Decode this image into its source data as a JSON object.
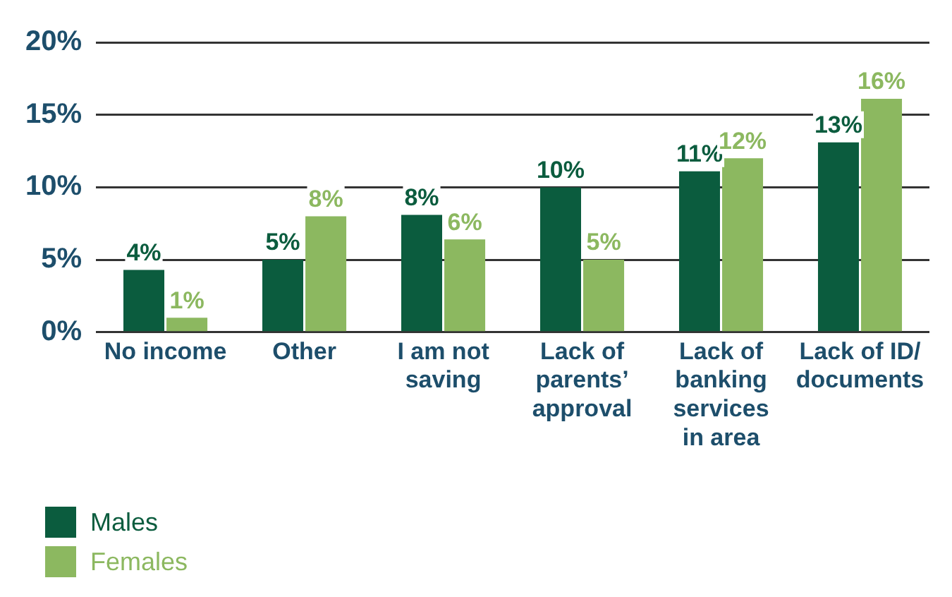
{
  "chart_data": {
    "type": "bar",
    "categories": [
      "No income",
      "Other",
      "I am not\nsaving",
      "Lack of\nparents’\napproval",
      "Lack of\nbanking\nservices\nin area",
      "Lack of ID/\ndocuments"
    ],
    "series": [
      {
        "name": "Males",
        "color": "#0b5c3e",
        "values": [
          4.3,
          5,
          8.1,
          10,
          11.1,
          13.1
        ],
        "value_labels": [
          "4%",
          "5%",
          "8%",
          "10%",
          "11%",
          "13%"
        ]
      },
      {
        "name": "Females",
        "color": "#8cb860",
        "values": [
          1,
          8,
          6.4,
          5,
          12,
          16.1
        ],
        "value_labels": [
          "1%",
          "8%",
          "6%",
          "5%",
          "12%",
          "16%"
        ]
      }
    ],
    "ylim": [
      0,
      20
    ],
    "yticks": [
      {
        "value": 0,
        "label": "0%"
      },
      {
        "value": 5,
        "label": "5%"
      },
      {
        "value": 10,
        "label": "10%"
      },
      {
        "value": 15,
        "label": "15%"
      },
      {
        "value": 20,
        "label": "20%"
      }
    ],
    "grid": "y",
    "legend": "bottom left"
  }
}
